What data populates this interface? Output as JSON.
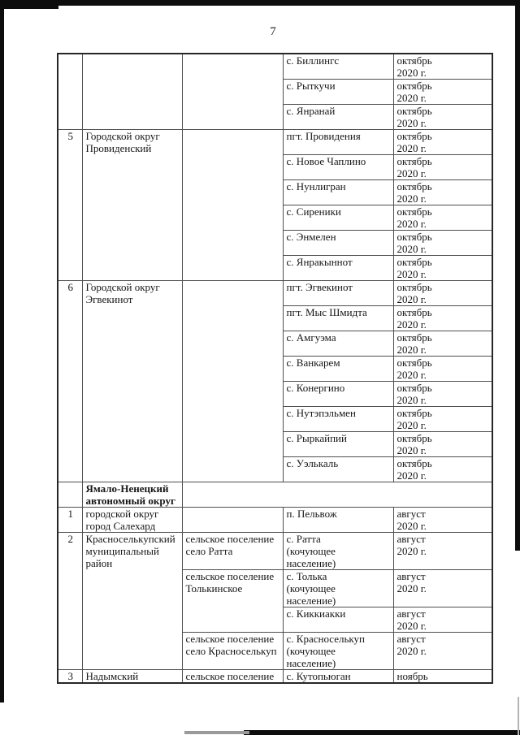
{
  "page": {
    "number": "7"
  },
  "table": {
    "rows": [
      {
        "cells": [
          {
            "col": 0,
            "rowspan": 3,
            "text": ""
          },
          {
            "col": 1,
            "rowspan": 3,
            "text": ""
          },
          {
            "col": 2,
            "rowspan": 3,
            "text": ""
          },
          {
            "col": 3,
            "text": "с. Биллингс"
          },
          {
            "col": 4,
            "text": "октябрь\n2020 г."
          }
        ]
      },
      {
        "cells": [
          {
            "col": 3,
            "text": "с. Рыткучи"
          },
          {
            "col": 4,
            "text": "октябрь\n2020 г."
          }
        ]
      },
      {
        "cells": [
          {
            "col": 3,
            "text": "с. Янранай"
          },
          {
            "col": 4,
            "text": "октябрь\n2020 г."
          }
        ]
      },
      {
        "cells": [
          {
            "col": 0,
            "rowspan": 6,
            "text": "5"
          },
          {
            "col": 1,
            "rowspan": 6,
            "text": "Городской округ Провиденский"
          },
          {
            "col": 2,
            "rowspan": 6,
            "text": ""
          },
          {
            "col": 3,
            "text": "пгт. Провидения"
          },
          {
            "col": 4,
            "text": "октябрь\n2020 г."
          }
        ]
      },
      {
        "cells": [
          {
            "col": 3,
            "text": "с. Новое Чаплино"
          },
          {
            "col": 4,
            "text": "октябрь\n2020 г."
          }
        ]
      },
      {
        "cells": [
          {
            "col": 3,
            "text": "с. Нунлигран"
          },
          {
            "col": 4,
            "text": "октябрь\n2020 г."
          }
        ]
      },
      {
        "cells": [
          {
            "col": 3,
            "text": "с. Сиреники"
          },
          {
            "col": 4,
            "text": "октябрь\n2020 г."
          }
        ]
      },
      {
        "cells": [
          {
            "col": 3,
            "text": "с. Энмелен"
          },
          {
            "col": 4,
            "text": "октябрь\n2020 г."
          }
        ]
      },
      {
        "cells": [
          {
            "col": 3,
            "text": "с. Янракыннот"
          },
          {
            "col": 4,
            "text": "октябрь\n2020 г."
          }
        ]
      },
      {
        "cells": [
          {
            "col": 0,
            "rowspan": 8,
            "text": "6"
          },
          {
            "col": 1,
            "rowspan": 8,
            "text": "Городской округ Эгвекинот"
          },
          {
            "col": 2,
            "rowspan": 8,
            "text": ""
          },
          {
            "col": 3,
            "text": "пгт. Эгвекинот"
          },
          {
            "col": 4,
            "text": "октябрь\n2020 г."
          }
        ]
      },
      {
        "cells": [
          {
            "col": 3,
            "text": "пгт. Мыс Шмидта"
          },
          {
            "col": 4,
            "text": "октябрь\n2020 г."
          }
        ]
      },
      {
        "cells": [
          {
            "col": 3,
            "text": "с. Амгуэма"
          },
          {
            "col": 4,
            "text": "октябрь\n2020 г."
          }
        ]
      },
      {
        "cells": [
          {
            "col": 3,
            "text": "с. Ванкарем"
          },
          {
            "col": 4,
            "text": "октябрь\n2020 г."
          }
        ]
      },
      {
        "cells": [
          {
            "col": 3,
            "text": "с. Конергино"
          },
          {
            "col": 4,
            "text": "октябрь\n2020 г."
          }
        ]
      },
      {
        "cells": [
          {
            "col": 3,
            "text": "с. Нутэпэльмен"
          },
          {
            "col": 4,
            "text": "октябрь\n2020 г."
          }
        ]
      },
      {
        "cells": [
          {
            "col": 3,
            "text": "с. Рыркайпий"
          },
          {
            "col": 4,
            "text": "октябрь\n2020 г."
          }
        ]
      },
      {
        "cells": [
          {
            "col": 3,
            "text": "с. Уэлькаль"
          },
          {
            "col": 4,
            "text": "октябрь\n2020 г."
          }
        ]
      },
      {
        "cells": [
          {
            "col": 0,
            "text": ""
          },
          {
            "col": 1,
            "bold": true,
            "text": "Ямало-Ненецкий автономный округ"
          },
          {
            "col": 2,
            "colspan": 3,
            "text": ""
          }
        ]
      },
      {
        "cells": [
          {
            "col": 0,
            "text": "1"
          },
          {
            "col": 1,
            "text": "городской округ город Салехард"
          },
          {
            "col": 2,
            "text": ""
          },
          {
            "col": 3,
            "text": "п. Пельвож"
          },
          {
            "col": 4,
            "text": "август\n2020 г."
          }
        ]
      },
      {
        "cells": [
          {
            "col": 0,
            "rowspan": 4,
            "text": "2"
          },
          {
            "col": 1,
            "rowspan": 4,
            "text": "Красноселькупский муниципальный район"
          },
          {
            "col": 2,
            "text": "сельское поселение село Ратта"
          },
          {
            "col": 3,
            "text": "с. Ратта\n(кочующее\nнаселение)"
          },
          {
            "col": 4,
            "text": "август\n2020 г."
          }
        ]
      },
      {
        "cells": [
          {
            "col": 2,
            "rowspan": 2,
            "text": "сельское поселение Толькинское"
          },
          {
            "col": 3,
            "text": "с. Толька\n(кочующее\nнаселение)"
          },
          {
            "col": 4,
            "text": "август\n2020 г."
          }
        ]
      },
      {
        "cells": [
          {
            "col": 3,
            "text": "с. Киккиакки"
          },
          {
            "col": 4,
            "text": "август\n2020 г."
          }
        ]
      },
      {
        "cells": [
          {
            "col": 2,
            "text": "сельское поселение село Красноселькуп"
          },
          {
            "col": 3,
            "text": "с. Красноселькуп\n(кочующее\nнаселение)"
          },
          {
            "col": 4,
            "text": "август\n2020 г."
          }
        ]
      },
      {
        "cells": [
          {
            "col": 0,
            "text": "3"
          },
          {
            "col": 1,
            "text": "Надымский"
          },
          {
            "col": 2,
            "text": "сельское поселение"
          },
          {
            "col": 3,
            "text": "с. Кутопьюган"
          },
          {
            "col": 4,
            "text": "ноябрь"
          }
        ]
      }
    ]
  }
}
